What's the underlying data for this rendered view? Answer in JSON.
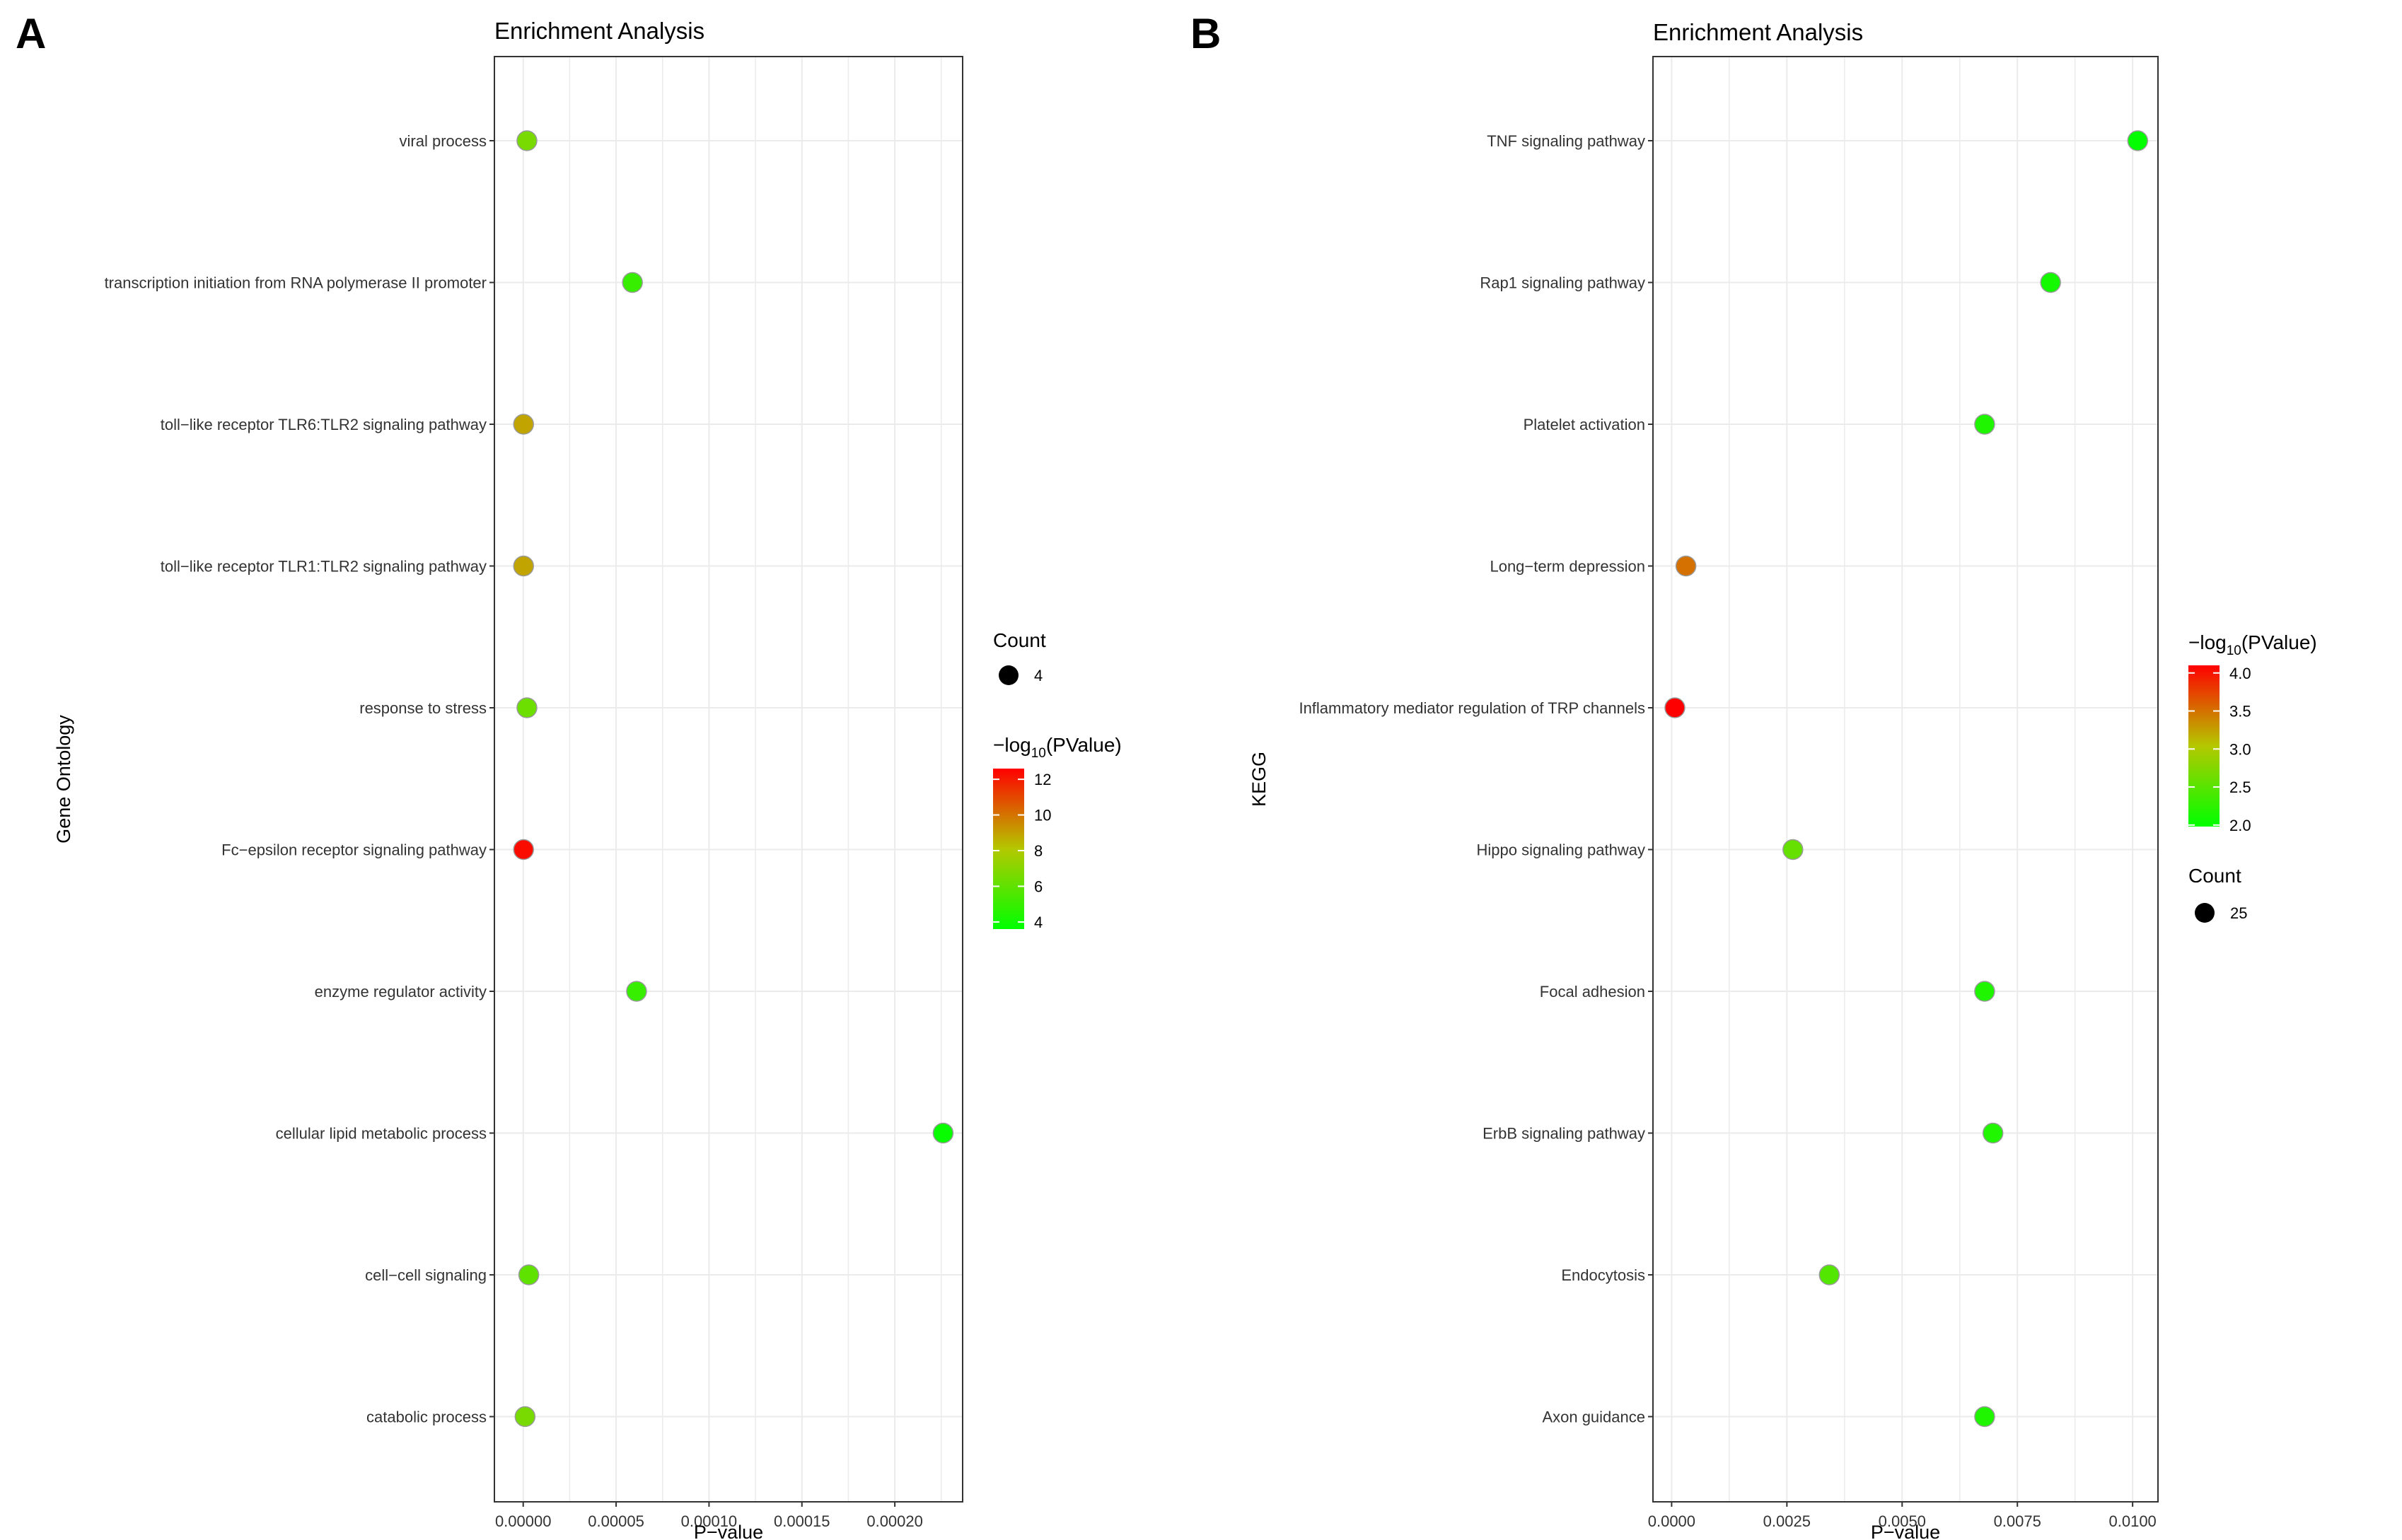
{
  "panels": [
    {
      "letter": "A",
      "chart_data": {
        "type": "scatter",
        "title": "Enrichment Analysis",
        "xlabel": "P−value",
        "ylabel": "Gene Ontology",
        "xlim": [
          -1.55e-05,
          0.0002365
        ],
        "xticks": [
          0,
          5e-05,
          0.0001,
          0.00015,
          0.0002
        ],
        "xtick_labels": [
          "0.00000",
          "0.00005",
          "0.00010",
          "0.00015",
          "0.00020"
        ],
        "categories": [
          "viral process",
          "transcription initiation from RNA polymerase II promoter",
          "toll−like receptor TLR6:TLR2 signaling pathway",
          "toll−like receptor TLR1:TLR2 signaling pathway",
          "response to stress",
          "Fc−epsilon receptor signaling pathway",
          "enzyme regulator activity",
          "cellular lipid metabolic process",
          "cell−cell signaling",
          "catabolic process"
        ],
        "x": [
          2e-06,
          5.88e-05,
          2e-07,
          2e-07,
          2e-06,
          2e-07,
          6.1e-05,
          0.000226,
          3e-06,
          1e-06
        ],
        "color_values": [
          6.6,
          5.0,
          8.9,
          8.9,
          6.3,
          12.3,
          5.0,
          3.8,
          6.0,
          6.6
        ],
        "color_legend": {
          "title": "−log",
          "sub": "10",
          "title_rest": "(PValue)",
          "range": [
            3.6,
            12.6
          ],
          "ticks": [
            12,
            10,
            8,
            6,
            4
          ],
          "tick_labels": [
            "12",
            "10",
            "8",
            "6",
            "4"
          ]
        },
        "size_legend": {
          "title": "Count",
          "value_label": "4"
        },
        "grid": true,
        "legend_order": "size-first"
      }
    },
    {
      "letter": "B",
      "chart_data": {
        "type": "scatter",
        "title": "Enrichment Analysis",
        "xlabel": "P−value",
        "ylabel": "KEGG",
        "xlim": [
          -0.000405,
          0.01055
        ],
        "xticks": [
          0,
          0.0025,
          0.005,
          0.0075,
          0.01
        ],
        "xtick_labels": [
          "0.0000",
          "0.0025",
          "0.0050",
          "0.0075",
          "0.0100"
        ],
        "categories": [
          "TNF signaling pathway",
          "Rap1 signaling pathway",
          "Platelet activation",
          "Long−term depression",
          "Inflammatory mediator regulation of TRP channels",
          "Hippo signaling pathway",
          "Focal adhesion",
          "ErbB signaling pathway",
          "Endocytosis",
          "Axon guidance"
        ],
        "x": [
          0.01011,
          0.00822,
          0.00679,
          0.00031,
          7e-05,
          0.00263,
          0.00679,
          0.00697,
          0.00342,
          0.00679
        ],
        "color_values": [
          2.0,
          2.1,
          2.17,
          3.5,
          4.15,
          2.58,
          2.17,
          2.16,
          2.47,
          2.17
        ],
        "color_legend": {
          "title": "−log",
          "sub": "10",
          "title_rest": "(PValue)",
          "range": [
            1.98,
            4.1
          ],
          "ticks": [
            4.0,
            3.5,
            3.0,
            2.5,
            2.0
          ],
          "tick_labels": [
            "4.0",
            "3.5",
            "3.0",
            "2.5",
            "2.0"
          ]
        },
        "size_legend": {
          "title": "Count",
          "value_label": "25"
        },
        "grid": true,
        "legend_order": "color-first"
      }
    }
  ],
  "colors": {
    "low": "#00ff00",
    "mid": "#b4c800",
    "high": "#ff0000",
    "grid": "#ebebeb",
    "border": "#333333",
    "tick_text": "#333333",
    "point_outline": "#9a9a9a"
  }
}
